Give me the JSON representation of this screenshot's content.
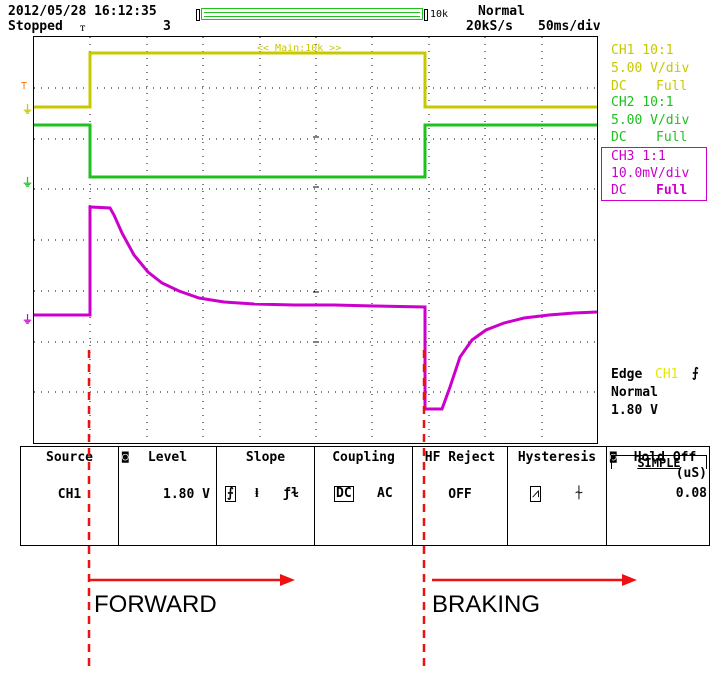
{
  "header": {
    "datetime": "2012/05/28 16:12:35",
    "status": "Stopped",
    "count": "3",
    "record_length": "10k",
    "trigger_mode": "Normal",
    "sample_rate": "20kS/s",
    "timebase": "50ms/div"
  },
  "screen": {
    "main_label": "<< Main:10k >>",
    "trace_colors": {
      "ch1": "#c8c800",
      "ch2": "#20c020",
      "ch3": "#cc00cc",
      "trigger_level": "#ff7700"
    }
  },
  "channels": [
    {
      "name": "CH1 10:1",
      "scale": "5.00 V/div",
      "coupling": "DC",
      "bw": "Full",
      "color": "#c8c800"
    },
    {
      "name": "CH2 10:1",
      "scale": "5.00 V/div",
      "coupling": "DC",
      "bw": "Full",
      "color": "#20c020"
    },
    {
      "name": "CH3 1:1",
      "scale": "10.0mV/div",
      "coupling": "DC",
      "bw": "Full",
      "color": "#cc00cc"
    }
  ],
  "trigger": {
    "type": "Edge",
    "source": "CH1",
    "mode": "Normal",
    "level": "1.80 V"
  },
  "simple_tab": "SIMPLE",
  "menu": {
    "source": {
      "label": "Source",
      "value": "CH1"
    },
    "level": {
      "label": "Level",
      "value": "1.80 V"
    },
    "slope": {
      "label": "Slope"
    },
    "coupling": {
      "label": "Coupling",
      "opt1": "DC",
      "opt2": "AC"
    },
    "hf_reject": {
      "label": "HF Reject",
      "value": "OFF"
    },
    "hysteresis": {
      "label": "Hysteresis"
    },
    "hold_off": {
      "label": "Hold Off",
      "unit": "(uS)",
      "value": "0.08"
    }
  },
  "annotations": {
    "forward": "FORWARD",
    "braking": "BRAKING"
  }
}
